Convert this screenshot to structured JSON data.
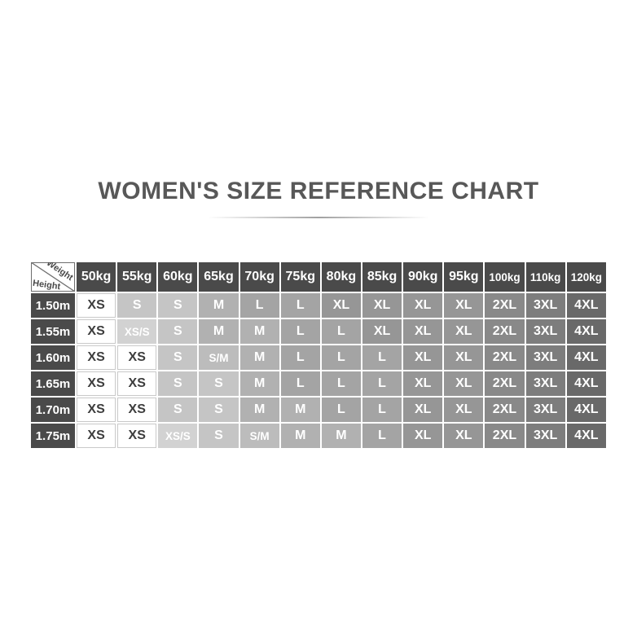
{
  "title": "WOMEN'S SIZE REFERENCE CHART",
  "table": {
    "corner": {
      "top_label": "Weight",
      "bottom_label": "Height"
    },
    "weights": [
      "50kg",
      "55kg",
      "60kg",
      "65kg",
      "70kg",
      "75kg",
      "80kg",
      "85kg",
      "90kg",
      "95kg",
      "100kg",
      "110kg",
      "120kg"
    ],
    "heights": [
      "1.50m",
      "1.55m",
      "1.60m",
      "1.65m",
      "1.70m",
      "1.75m"
    ],
    "rows": [
      [
        "XS",
        "S",
        "S",
        "M",
        "L",
        "L",
        "XL",
        "XL",
        "XL",
        "XL",
        "2XL",
        "3XL",
        "4XL"
      ],
      [
        "XS",
        "XS/S",
        "S",
        "M",
        "M",
        "L",
        "L",
        "XL",
        "XL",
        "XL",
        "2XL",
        "3XL",
        "4XL"
      ],
      [
        "XS",
        "XS",
        "S",
        "S/M",
        "M",
        "L",
        "L",
        "L",
        "XL",
        "XL",
        "2XL",
        "3XL",
        "4XL"
      ],
      [
        "XS",
        "XS",
        "S",
        "S",
        "M",
        "L",
        "L",
        "L",
        "XL",
        "XL",
        "2XL",
        "3XL",
        "4XL"
      ],
      [
        "XS",
        "XS",
        "S",
        "S",
        "M",
        "M",
        "L",
        "L",
        "XL",
        "XL",
        "2XL",
        "3XL",
        "4XL"
      ],
      [
        "XS",
        "XS",
        "XS/S",
        "S",
        "S/M",
        "M",
        "M",
        "L",
        "XL",
        "XL",
        "2XL",
        "3XL",
        "4XL"
      ]
    ]
  },
  "colors": {
    "header_bg": "#4a4a4a",
    "header_text": "#ffffff",
    "xs_cell_text": "#3d3d3d",
    "size_cell_text": "#ffffff",
    "title_text": "#585858",
    "size_shades": {
      "XS": "#ffffff",
      "XS/S": "#d2d2d2",
      "S": "#c5c5c5",
      "S/M": "#bcbcbc",
      "M": "#b1b1b1",
      "L": "#a4a4a4",
      "XL": "#969696",
      "2XL": "#898989",
      "3XL": "#7d7d7d",
      "4XL": "#696969"
    }
  }
}
